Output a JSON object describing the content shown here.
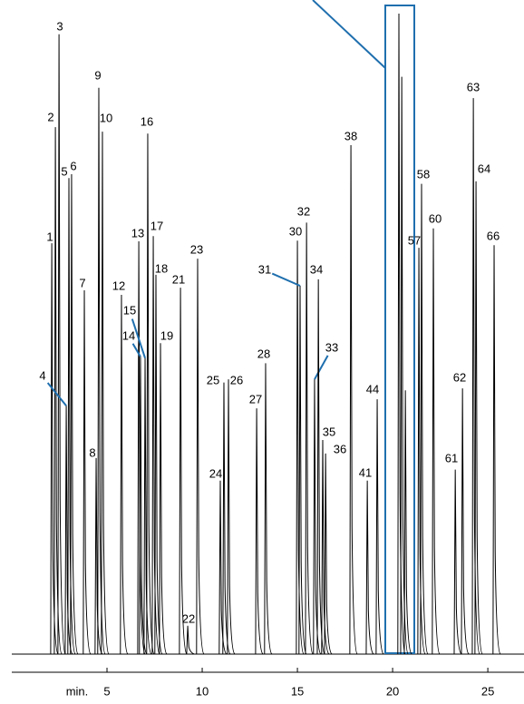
{
  "chart_data": {
    "type": "chromatogram",
    "x_label": "min.",
    "xlim": [
      0,
      26.9
    ],
    "xticks": [
      5,
      10,
      15,
      20,
      25
    ],
    "ylim": [
      0,
      100
    ],
    "color": "#000000",
    "highlight_color": "#1f6fae",
    "peak_labels": [
      "1",
      "2",
      "3",
      "4",
      "5",
      "6",
      "7",
      "8",
      "9",
      "10",
      "12",
      "13",
      "14",
      "15",
      "16",
      "17",
      "18",
      "19",
      "21",
      "22",
      "23",
      "24",
      "25",
      "26",
      "27",
      "28",
      "30",
      "31",
      "32",
      "33",
      "34",
      "35",
      "36",
      "38",
      "41",
      "44",
      null,
      null,
      null,
      "57",
      "58",
      "60",
      "61",
      "62",
      "63",
      "64",
      "66"
    ],
    "x": [
      2.1,
      2.29,
      2.48,
      2.86,
      3.0,
      3.14,
      3.81,
      4.43,
      4.57,
      4.76,
      5.76,
      6.67,
      6.76,
      7.0,
      7.14,
      7.43,
      7.57,
      7.81,
      8.86,
      9.24,
      9.76,
      10.95,
      11.14,
      11.38,
      12.86,
      13.33,
      15.0,
      15.14,
      15.48,
      15.9,
      16.1,
      16.33,
      16.48,
      17.81,
      18.67,
      19.19,
      20.33,
      20.48,
      20.67,
      21.38,
      21.52,
      22.14,
      23.29,
      23.67,
      24.24,
      24.38,
      25.33
    ],
    "values": [
      63.7,
      81.7,
      96.1,
      38.5,
      73.8,
      74.4,
      56.4,
      30.4,
      87.8,
      81.0,
      55.7,
      64.0,
      46.1,
      45.9,
      80.7,
      64.8,
      58.8,
      48.2,
      56.8,
      4.4,
      61.3,
      26.9,
      42.1,
      42.6,
      38.1,
      45.1,
      64.1,
      57.1,
      66.9,
      42.6,
      58.1,
      33.2,
      31.1,
      78.9,
      26.9,
      39.5,
      99.3,
      89.5,
      40.9,
      63.0,
      72.9,
      66.0,
      28.6,
      41.2,
      86.2,
      73.3,
      63.4
    ]
  }
}
